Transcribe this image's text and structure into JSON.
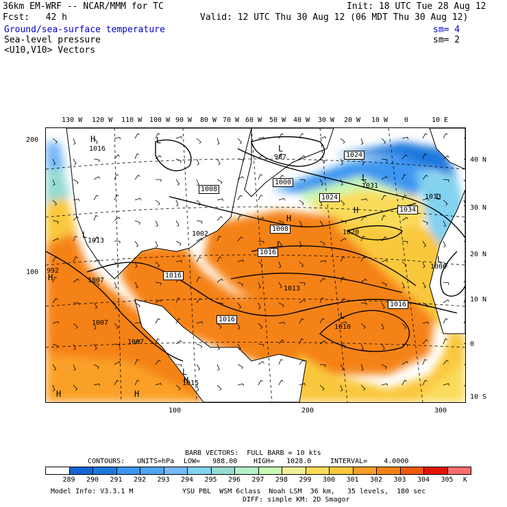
{
  "header": {
    "model_line": "36km EM-WRF -- NCAR/MMM for TC",
    "init": "Init: 18 UTC Tue 28 Aug 12",
    "fcst": "Fcst:   42 h",
    "valid": "Valid: 12 UTC Thu 30 Aug 12 (06 MDT Thu 30 Aug 12)",
    "fields": [
      {
        "label": "Ground/sea-surface temperature",
        "sm": "sm= 4",
        "color": "#0000cc"
      },
      {
        "label": "Sea-level pressure",
        "sm": "sm= 2",
        "color": "#000000"
      },
      {
        "label": "<U10,V10> Vectors",
        "sm": "",
        "color": "#000000"
      }
    ]
  },
  "map": {
    "lon_labels": [
      "130 W",
      "120 W",
      "110 W",
      "100 W",
      "90 W",
      "80 W",
      "70 W",
      "60 W",
      "50 W",
      "40 W",
      "30 W",
      "20 W",
      "10 W",
      "0",
      "10 E"
    ],
    "lat_labels": [
      "40 N",
      "30 N",
      "20 N",
      "10 N",
      "0",
      "10 S"
    ],
    "left_ticks": [
      "200",
      "100"
    ],
    "bottom_ticks": [
      "100",
      "200",
      "300"
    ],
    "pressure_boxes": [
      "1024",
      "1000",
      "1008",
      "1024",
      "1034",
      "1008",
      "1016",
      "1016",
      "1016",
      "1016"
    ],
    "pressure_labels": [
      "1016",
      "987",
      "1031",
      "1013",
      "1020",
      "1013",
      "1006",
      "1013",
      "1010",
      "1007",
      "1007",
      "1007",
      "1015",
      "992",
      "1002"
    ],
    "high_low": [
      "H",
      "L",
      "L",
      "L",
      "H",
      "L",
      "H",
      "L",
      "L",
      "L",
      "L",
      "H",
      "H",
      "H",
      "H",
      "L"
    ]
  },
  "footer": {
    "barb_line": "BARB VECTORS:  FULL BARB = 10 kts",
    "contours_label": "CONTOURS:",
    "units": "UNITS=hPa",
    "low": "LOW=   988.00",
    "high": "HIGH=   1028.0",
    "interval": "INTERVAL=    4.0000",
    "colorbar_values": [
      "289",
      "290",
      "291",
      "292",
      "293",
      "294",
      "295",
      "296",
      "297",
      "298",
      "299",
      "300",
      "301",
      "302",
      "303",
      "304",
      "305"
    ],
    "colorbar_unit": "K",
    "colorbar_colors": [
      "#ffffff",
      "#1464d2",
      "#1e78dc",
      "#3c96f0",
      "#50a5f5",
      "#78b9fa",
      "#82d2f0",
      "#96dcd2",
      "#b4f0c8",
      "#c8fab4",
      "#f0f09c",
      "#fadc5a",
      "#fac83c",
      "#faa028",
      "#f58218",
      "#f05a0a",
      "#e11400",
      "#ff6e6e"
    ],
    "model_info": "Model Info: V3.3.1 M",
    "physics1": "YSU PBL  WSM 6class  Noah LSM  36 km,   35 levels,  180 sec",
    "physics2": "DIFF: simple KM: 2D Smagor"
  }
}
